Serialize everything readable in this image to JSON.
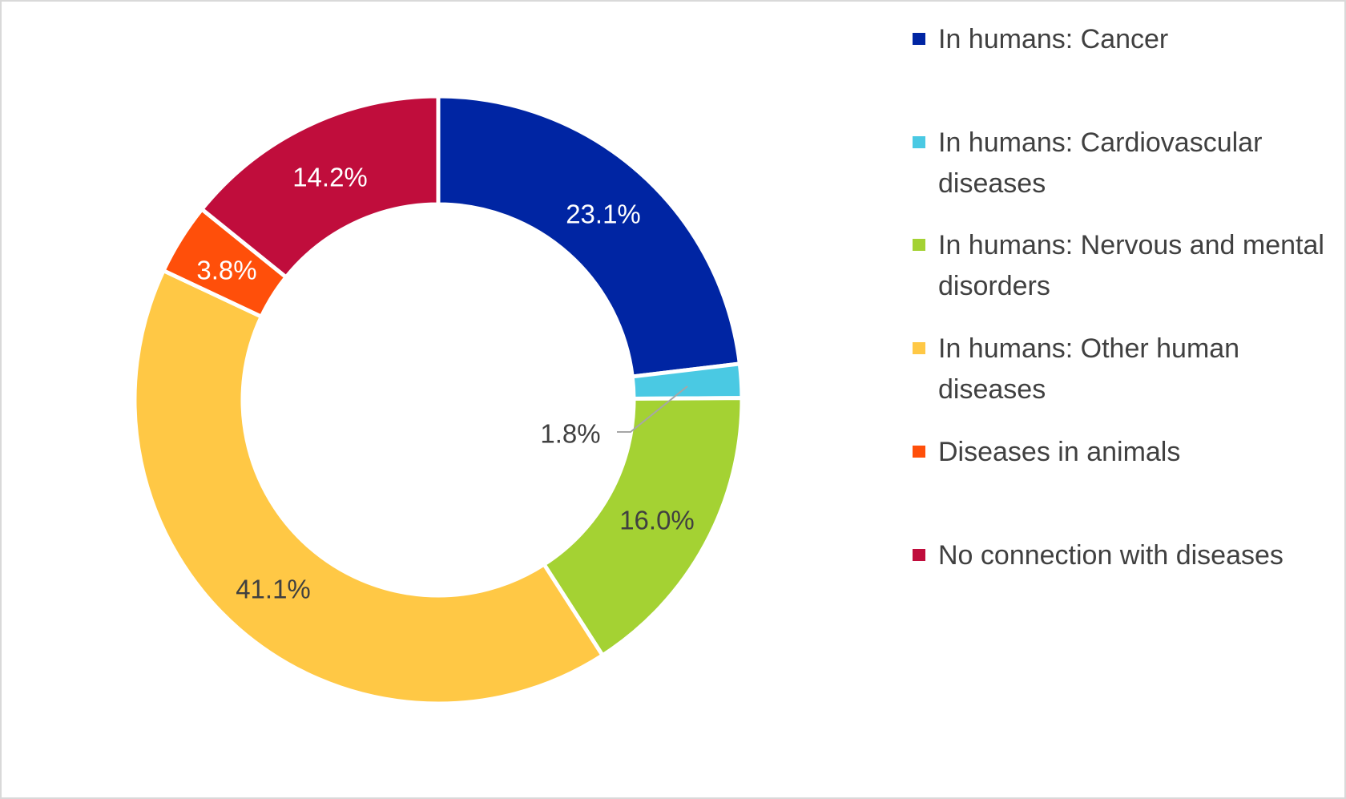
{
  "chart_data": {
    "type": "pie",
    "variant": "donut",
    "start_angle": "top, clockwise",
    "categories": [
      "In humans: Cancer",
      "In humans: Cardiovascular diseases",
      "In humans: Nervous and mental disorders",
      "In humans: Other human diseases",
      "Diseases in animals",
      "No connection with diseases"
    ],
    "values": [
      23.1,
      1.8,
      16.0,
      41.1,
      3.8,
      14.2
    ],
    "data_labels": [
      "23.1%",
      "1.8%",
      "16.0%",
      "41.1%",
      "3.8%",
      "14.2%"
    ],
    "colors": [
      "#0025a3",
      "#4ac9e3",
      "#a4d233",
      "#ffc845",
      "#ff4f0a",
      "#c00d3c"
    ],
    "label_colors": [
      "#ffffff",
      "#404040",
      "#404040",
      "#404040",
      "#ffffff",
      "#ffffff"
    ],
    "legend_position": "right"
  }
}
